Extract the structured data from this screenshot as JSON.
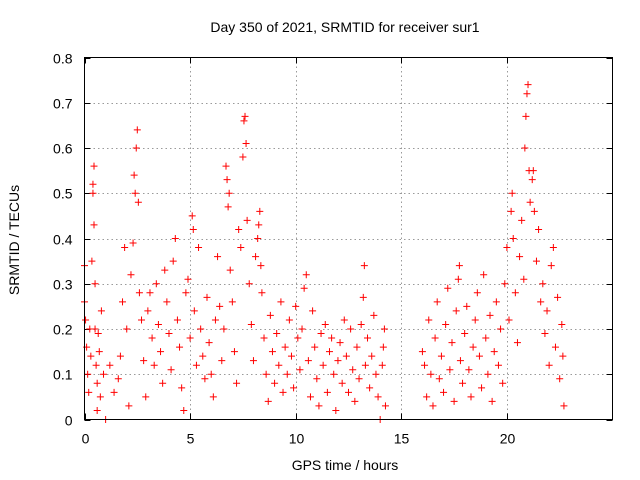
{
  "chart_data": {
    "type": "scatter",
    "title": "Day 350 of 2021, SRMTID for receiver sur1",
    "xlabel": "GPS time / hours",
    "ylabel": "SRMTID / TECUs",
    "xlim": [
      0,
      25
    ],
    "ylim": [
      0,
      0.8
    ],
    "xticks": [
      0,
      5,
      10,
      15,
      20
    ],
    "yticks": [
      0,
      0.1,
      0.2,
      0.3,
      0.4,
      0.5,
      0.6,
      0.7,
      0.8
    ],
    "xtick_labels": [
      "0",
      "5",
      "10",
      "15",
      "20"
    ],
    "ytick_labels": [
      "0",
      "0.1",
      "0.2",
      "0.3",
      "0.4",
      "0.5",
      "0.6",
      "0.7",
      "0.8"
    ],
    "grid": true,
    "marker": "+",
    "color": "#ff0000",
    "data_gap_hours": [
      14.3,
      15.9
    ],
    "series": [
      {
        "name": "sur1",
        "points": [
          [
            0.0,
            0.34
          ],
          [
            0.0,
            0.26
          ],
          [
            0.05,
            0.22
          ],
          [
            0.1,
            0.16
          ],
          [
            0.15,
            0.1
          ],
          [
            0.2,
            0.06
          ],
          [
            0.25,
            0.2
          ],
          [
            0.3,
            0.14
          ],
          [
            0.35,
            0.35
          ],
          [
            0.4,
            0.5
          ],
          [
            0.4,
            0.52
          ],
          [
            0.45,
            0.43
          ],
          [
            0.45,
            0.56
          ],
          [
            0.5,
            0.3
          ],
          [
            0.5,
            0.2
          ],
          [
            0.55,
            0.12
          ],
          [
            0.6,
            0.08
          ],
          [
            0.6,
            0.02
          ],
          [
            0.65,
            0.19
          ],
          [
            0.7,
            0.15
          ],
          [
            0.75,
            0.05
          ],
          [
            0.8,
            0.24
          ],
          [
            0.9,
            0.1
          ],
          [
            1.0,
            0.0
          ],
          [
            1.2,
            0.12
          ],
          [
            1.4,
            0.06
          ],
          [
            1.6,
            0.09
          ],
          [
            1.7,
            0.14
          ],
          [
            1.8,
            0.26
          ],
          [
            1.9,
            0.38
          ],
          [
            2.0,
            0.2
          ],
          [
            2.1,
            0.03
          ],
          [
            2.2,
            0.32
          ],
          [
            2.3,
            0.39
          ],
          [
            2.35,
            0.54
          ],
          [
            2.4,
            0.5
          ],
          [
            2.45,
            0.6
          ],
          [
            2.5,
            0.64
          ],
          [
            2.55,
            0.48
          ],
          [
            2.6,
            0.28
          ],
          [
            2.7,
            0.22
          ],
          [
            2.8,
            0.13
          ],
          [
            2.9,
            0.05
          ],
          [
            3.0,
            0.24
          ],
          [
            3.1,
            0.28
          ],
          [
            3.2,
            0.18
          ],
          [
            3.3,
            0.12
          ],
          [
            3.4,
            0.3
          ],
          [
            3.5,
            0.21
          ],
          [
            3.6,
            0.15
          ],
          [
            3.7,
            0.08
          ],
          [
            3.8,
            0.33
          ],
          [
            3.9,
            0.26
          ],
          [
            4.0,
            0.19
          ],
          [
            4.1,
            0.11
          ],
          [
            4.2,
            0.35
          ],
          [
            4.3,
            0.4
          ],
          [
            4.4,
            0.22
          ],
          [
            4.5,
            0.16
          ],
          [
            4.6,
            0.07
          ],
          [
            4.7,
            0.02
          ],
          [
            4.8,
            0.28
          ],
          [
            4.9,
            0.31
          ],
          [
            5.0,
            0.18
          ],
          [
            5.1,
            0.45
          ],
          [
            5.15,
            0.42
          ],
          [
            5.2,
            0.24
          ],
          [
            5.3,
            0.12
          ],
          [
            5.4,
            0.38
          ],
          [
            5.5,
            0.2
          ],
          [
            5.6,
            0.14
          ],
          [
            5.7,
            0.09
          ],
          [
            5.8,
            0.27
          ],
          [
            5.9,
            0.17
          ],
          [
            6.0,
            0.1
          ],
          [
            6.1,
            0.05
          ],
          [
            6.2,
            0.22
          ],
          [
            6.3,
            0.36
          ],
          [
            6.4,
            0.25
          ],
          [
            6.5,
            0.13
          ],
          [
            6.6,
            0.2
          ],
          [
            6.7,
            0.56
          ],
          [
            6.75,
            0.53
          ],
          [
            6.8,
            0.47
          ],
          [
            6.85,
            0.5
          ],
          [
            6.9,
            0.33
          ],
          [
            7.0,
            0.26
          ],
          [
            7.1,
            0.15
          ],
          [
            7.2,
            0.08
          ],
          [
            7.3,
            0.42
          ],
          [
            7.4,
            0.38
          ],
          [
            7.5,
            0.58
          ],
          [
            7.55,
            0.66
          ],
          [
            7.6,
            0.67
          ],
          [
            7.65,
            0.61
          ],
          [
            7.7,
            0.44
          ],
          [
            7.8,
            0.3
          ],
          [
            7.9,
            0.21
          ],
          [
            8.0,
            0.13
          ],
          [
            8.1,
            0.36
          ],
          [
            8.2,
            0.4
          ],
          [
            8.25,
            0.43
          ],
          [
            8.3,
            0.46
          ],
          [
            8.35,
            0.34
          ],
          [
            8.4,
            0.28
          ],
          [
            8.5,
            0.18
          ],
          [
            8.6,
            0.1
          ],
          [
            8.7,
            0.04
          ],
          [
            8.8,
            0.23
          ],
          [
            8.9,
            0.15
          ],
          [
            9.0,
            0.08
          ],
          [
            9.1,
            0.19
          ],
          [
            9.2,
            0.12
          ],
          [
            9.3,
            0.26
          ],
          [
            9.4,
            0.06
          ],
          [
            9.5,
            0.16
          ],
          [
            9.6,
            0.1
          ],
          [
            9.7,
            0.22
          ],
          [
            9.8,
            0.14
          ],
          [
            9.9,
            0.07
          ],
          [
            10.0,
            0.25
          ],
          [
            10.1,
            0.18
          ],
          [
            10.2,
            0.11
          ],
          [
            10.3,
            0.2
          ],
          [
            10.4,
            0.29
          ],
          [
            10.5,
            0.32
          ],
          [
            10.6,
            0.13
          ],
          [
            10.7,
            0.05
          ],
          [
            10.8,
            0.24
          ],
          [
            10.9,
            0.16
          ],
          [
            11.0,
            0.09
          ],
          [
            11.1,
            0.03
          ],
          [
            11.2,
            0.19
          ],
          [
            11.3,
            0.12
          ],
          [
            11.4,
            0.21
          ],
          [
            11.5,
            0.06
          ],
          [
            11.6,
            0.15
          ],
          [
            11.7,
            0.18
          ],
          [
            11.8,
            0.1
          ],
          [
            11.9,
            0.02
          ],
          [
            12.0,
            0.13
          ],
          [
            12.1,
            0.17
          ],
          [
            12.2,
            0.08
          ],
          [
            12.3,
            0.22
          ],
          [
            12.4,
            0.14
          ],
          [
            12.5,
            0.06
          ],
          [
            12.6,
            0.2
          ],
          [
            12.7,
            0.11
          ],
          [
            12.8,
            0.04
          ],
          [
            12.9,
            0.16
          ],
          [
            13.0,
            0.09
          ],
          [
            13.1,
            0.21
          ],
          [
            13.2,
            0.27
          ],
          [
            13.25,
            0.34
          ],
          [
            13.3,
            0.12
          ],
          [
            13.4,
            0.18
          ],
          [
            13.5,
            0.07
          ],
          [
            13.6,
            0.14
          ],
          [
            13.7,
            0.23
          ],
          [
            13.8,
            0.1
          ],
          [
            13.9,
            0.05
          ],
          [
            14.0,
            0.0
          ],
          [
            14.1,
            0.12
          ],
          [
            14.15,
            0.16
          ],
          [
            14.2,
            0.2
          ],
          [
            14.25,
            0.03
          ],
          [
            16.0,
            0.15
          ],
          [
            16.1,
            0.12
          ],
          [
            16.2,
            0.05
          ],
          [
            16.3,
            0.22
          ],
          [
            16.4,
            0.1
          ],
          [
            16.5,
            0.03
          ],
          [
            16.6,
            0.18
          ],
          [
            16.7,
            0.26
          ],
          [
            16.8,
            0.09
          ],
          [
            16.9,
            0.14
          ],
          [
            17.0,
            0.06
          ],
          [
            17.1,
            0.21
          ],
          [
            17.2,
            0.29
          ],
          [
            17.3,
            0.11
          ],
          [
            17.4,
            0.17
          ],
          [
            17.5,
            0.04
          ],
          [
            17.6,
            0.24
          ],
          [
            17.7,
            0.31
          ],
          [
            17.75,
            0.34
          ],
          [
            17.8,
            0.13
          ],
          [
            17.9,
            0.08
          ],
          [
            18.0,
            0.19
          ],
          [
            18.1,
            0.25
          ],
          [
            18.2,
            0.11
          ],
          [
            18.3,
            0.05
          ],
          [
            18.4,
            0.16
          ],
          [
            18.5,
            0.22
          ],
          [
            18.6,
            0.28
          ],
          [
            18.7,
            0.14
          ],
          [
            18.8,
            0.07
          ],
          [
            18.9,
            0.32
          ],
          [
            19.0,
            0.18
          ],
          [
            19.1,
            0.1
          ],
          [
            19.2,
            0.23
          ],
          [
            19.3,
            0.04
          ],
          [
            19.4,
            0.15
          ],
          [
            19.5,
            0.26
          ],
          [
            19.6,
            0.12
          ],
          [
            19.7,
            0.2
          ],
          [
            19.8,
            0.08
          ],
          [
            19.9,
            0.3
          ],
          [
            20.0,
            0.38
          ],
          [
            20.1,
            0.22
          ],
          [
            20.2,
            0.46
          ],
          [
            20.25,
            0.5
          ],
          [
            20.3,
            0.4
          ],
          [
            20.4,
            0.28
          ],
          [
            20.5,
            0.17
          ],
          [
            20.6,
            0.36
          ],
          [
            20.7,
            0.44
          ],
          [
            20.8,
            0.31
          ],
          [
            20.85,
            0.6
          ],
          [
            20.9,
            0.67
          ],
          [
            20.95,
            0.72
          ],
          [
            21.0,
            0.74
          ],
          [
            21.05,
            0.55
          ],
          [
            21.1,
            0.48
          ],
          [
            21.2,
            0.53
          ],
          [
            21.25,
            0.55
          ],
          [
            21.3,
            0.46
          ],
          [
            21.4,
            0.35
          ],
          [
            21.5,
            0.42
          ],
          [
            21.6,
            0.26
          ],
          [
            21.7,
            0.3
          ],
          [
            21.8,
            0.19
          ],
          [
            21.9,
            0.24
          ],
          [
            22.0,
            0.12
          ],
          [
            22.1,
            0.34
          ],
          [
            22.2,
            0.38
          ],
          [
            22.3,
            0.16
          ],
          [
            22.4,
            0.27
          ],
          [
            22.5,
            0.09
          ],
          [
            22.6,
            0.21
          ],
          [
            22.65,
            0.14
          ],
          [
            22.7,
            0.03
          ]
        ]
      }
    ]
  }
}
